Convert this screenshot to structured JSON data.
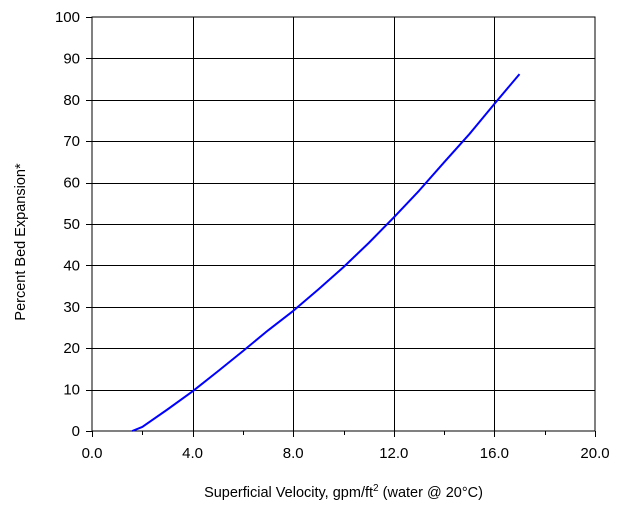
{
  "chart_data": {
    "type": "line",
    "title": "",
    "xlabel": "Superficial Velocity, gpm/ft",
    "xlabel_sup": "2",
    "xlabel_suffix": " (water @ 20°C)",
    "ylabel": "Percent Bed Expansion*",
    "xlim": [
      0,
      20
    ],
    "ylim": [
      0,
      100
    ],
    "x_ticks": [
      0,
      4,
      8,
      12,
      16,
      20
    ],
    "x_tick_labels": [
      "0.0",
      "4.0",
      "8.0",
      "12.0",
      "16.0",
      "20.0"
    ],
    "y_ticks": [
      0,
      10,
      20,
      30,
      40,
      50,
      60,
      70,
      80,
      90,
      100
    ],
    "y_tick_labels": [
      "0",
      "10",
      "20",
      "30",
      "40",
      "50",
      "60",
      "70",
      "80",
      "90",
      "100"
    ],
    "grid": true,
    "legend": "none",
    "series": [
      {
        "color": "#0000ff",
        "x": [
          1.6,
          2.0,
          3.0,
          4.0,
          5.0,
          6.0,
          7.0,
          8.0,
          9.0,
          10.0,
          11.0,
          12.0,
          13.0,
          14.0,
          15.0,
          16.0,
          17.0
        ],
        "y": [
          0,
          1.0,
          5.2,
          9.6,
          14.4,
          19.3,
          24.3,
          29.0,
          34.2,
          39.6,
          45.4,
          51.6,
          58.0,
          64.9,
          71.7,
          79.0,
          86.2
        ]
      }
    ]
  }
}
